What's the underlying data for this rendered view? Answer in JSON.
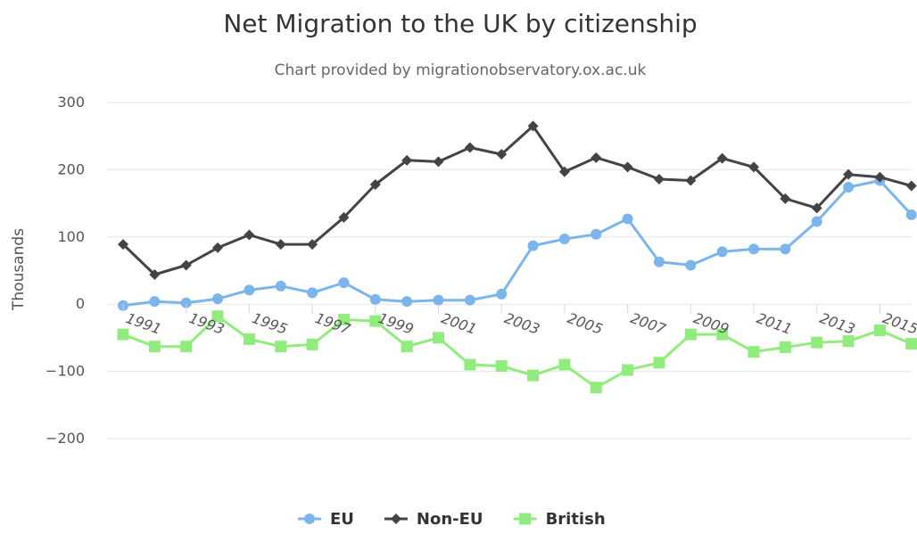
{
  "chart_data": {
    "type": "line",
    "title": "Net Migration to the UK by citizenship",
    "subtitle": "Chart provided by migrationobservatory.ox.ac.uk",
    "ylabel": "Thousands",
    "xlabel": "",
    "ylim": [
      -200,
      300
    ],
    "yticks": [
      300,
      200,
      100,
      0,
      -100,
      -200
    ],
    "ytick_labels": [
      "300",
      "200",
      "100",
      "0",
      "−100",
      "−200"
    ],
    "x": [
      1991,
      1992,
      1993,
      1994,
      1995,
      1996,
      1997,
      1998,
      1999,
      2000,
      2001,
      2002,
      2003,
      2004,
      2005,
      2006,
      2007,
      2008,
      2009,
      2010,
      2011,
      2012,
      2013,
      2014,
      2015,
      2016
    ],
    "xtick_labels": [
      "1991",
      "1993",
      "1995",
      "1997",
      "1999",
      "2001",
      "2003",
      "2005",
      "2007",
      "2009",
      "2011",
      "2013",
      "2015"
    ],
    "xtick_years": [
      1991,
      1993,
      1995,
      1997,
      1999,
      2001,
      2003,
      2005,
      2007,
      2009,
      2011,
      2013,
      2015
    ],
    "grid": true,
    "legend_position": "bottom-center",
    "series": [
      {
        "name": "EU",
        "color": "#7cb5ec",
        "marker": "circle",
        "values": [
          -2,
          4,
          2,
          8,
          21,
          27,
          17,
          32,
          7,
          4,
          6,
          6,
          15,
          87,
          97,
          104,
          127,
          63,
          58,
          78,
          82,
          82,
          123,
          174,
          184,
          133
        ]
      },
      {
        "name": "Non-EU",
        "color": "#434348",
        "marker": "diamond",
        "values": [
          89,
          44,
          58,
          84,
          103,
          89,
          89,
          129,
          178,
          214,
          212,
          233,
          223,
          265,
          197,
          218,
          204,
          186,
          184,
          217,
          204,
          157,
          143,
          193,
          189,
          176
        ]
      },
      {
        "name": "British",
        "color": "#90ed7d",
        "marker": "square",
        "values": [
          -45,
          -63,
          -63,
          -18,
          -52,
          -63,
          -60,
          -23,
          -25,
          -63,
          -50,
          -90,
          -92,
          -106,
          -90,
          -124,
          -98,
          -87,
          -45,
          -45,
          -71,
          -64,
          -57,
          -55,
          -39,
          -59
        ]
      }
    ]
  }
}
